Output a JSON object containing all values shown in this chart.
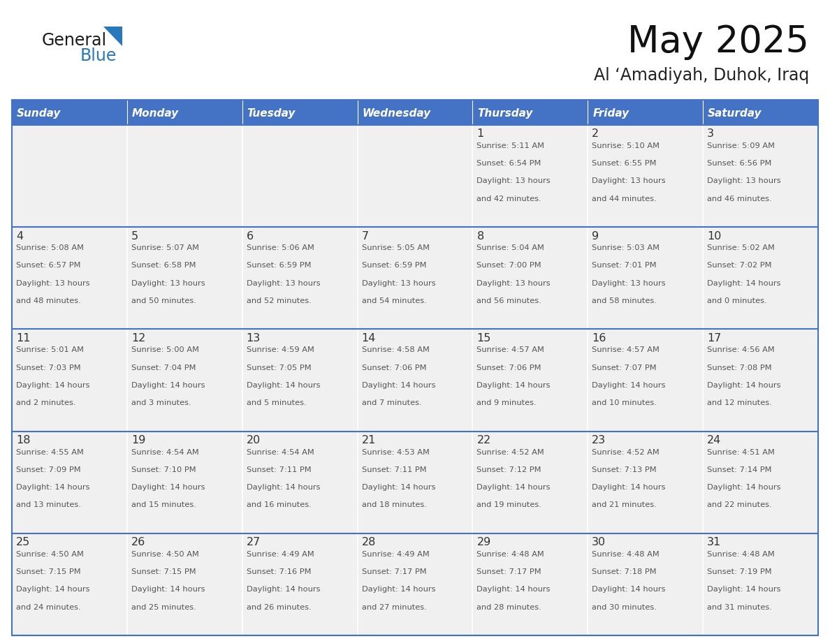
{
  "title": "May 2025",
  "subtitle": "Al ‘Amadiyah, Duhok, Iraq",
  "days_of_week": [
    "Sunday",
    "Monday",
    "Tuesday",
    "Wednesday",
    "Thursday",
    "Friday",
    "Saturday"
  ],
  "header_bg": "#4472C4",
  "header_text": "#FFFFFF",
  "cell_bg_light": "#F0F0F0",
  "border_color": "#4472C4",
  "day_num_color": "#333333",
  "text_color": "#555555",
  "logo_general_color": "#1a1a1a",
  "logo_blue_color": "#2878BE",
  "calendar_data": [
    [
      null,
      null,
      null,
      null,
      {
        "day": 1,
        "sunrise": "5:11 AM",
        "sunset": "6:54 PM",
        "daylight_hours": "13 hours",
        "daylight_mins": "and 42 minutes."
      },
      {
        "day": 2,
        "sunrise": "5:10 AM",
        "sunset": "6:55 PM",
        "daylight_hours": "13 hours",
        "daylight_mins": "and 44 minutes."
      },
      {
        "day": 3,
        "sunrise": "5:09 AM",
        "sunset": "6:56 PM",
        "daylight_hours": "13 hours",
        "daylight_mins": "and 46 minutes."
      }
    ],
    [
      {
        "day": 4,
        "sunrise": "5:08 AM",
        "sunset": "6:57 PM",
        "daylight_hours": "13 hours",
        "daylight_mins": "and 48 minutes."
      },
      {
        "day": 5,
        "sunrise": "5:07 AM",
        "sunset": "6:58 PM",
        "daylight_hours": "13 hours",
        "daylight_mins": "and 50 minutes."
      },
      {
        "day": 6,
        "sunrise": "5:06 AM",
        "sunset": "6:59 PM",
        "daylight_hours": "13 hours",
        "daylight_mins": "and 52 minutes."
      },
      {
        "day": 7,
        "sunrise": "5:05 AM",
        "sunset": "6:59 PM",
        "daylight_hours": "13 hours",
        "daylight_mins": "and 54 minutes."
      },
      {
        "day": 8,
        "sunrise": "5:04 AM",
        "sunset": "7:00 PM",
        "daylight_hours": "13 hours",
        "daylight_mins": "and 56 minutes."
      },
      {
        "day": 9,
        "sunrise": "5:03 AM",
        "sunset": "7:01 PM",
        "daylight_hours": "13 hours",
        "daylight_mins": "and 58 minutes."
      },
      {
        "day": 10,
        "sunrise": "5:02 AM",
        "sunset": "7:02 PM",
        "daylight_hours": "14 hours",
        "daylight_mins": "and 0 minutes."
      }
    ],
    [
      {
        "day": 11,
        "sunrise": "5:01 AM",
        "sunset": "7:03 PM",
        "daylight_hours": "14 hours",
        "daylight_mins": "and 2 minutes."
      },
      {
        "day": 12,
        "sunrise": "5:00 AM",
        "sunset": "7:04 PM",
        "daylight_hours": "14 hours",
        "daylight_mins": "and 3 minutes."
      },
      {
        "day": 13,
        "sunrise": "4:59 AM",
        "sunset": "7:05 PM",
        "daylight_hours": "14 hours",
        "daylight_mins": "and 5 minutes."
      },
      {
        "day": 14,
        "sunrise": "4:58 AM",
        "sunset": "7:06 PM",
        "daylight_hours": "14 hours",
        "daylight_mins": "and 7 minutes."
      },
      {
        "day": 15,
        "sunrise": "4:57 AM",
        "sunset": "7:06 PM",
        "daylight_hours": "14 hours",
        "daylight_mins": "and 9 minutes."
      },
      {
        "day": 16,
        "sunrise": "4:57 AM",
        "sunset": "7:07 PM",
        "daylight_hours": "14 hours",
        "daylight_mins": "and 10 minutes."
      },
      {
        "day": 17,
        "sunrise": "4:56 AM",
        "sunset": "7:08 PM",
        "daylight_hours": "14 hours",
        "daylight_mins": "and 12 minutes."
      }
    ],
    [
      {
        "day": 18,
        "sunrise": "4:55 AM",
        "sunset": "7:09 PM",
        "daylight_hours": "14 hours",
        "daylight_mins": "and 13 minutes."
      },
      {
        "day": 19,
        "sunrise": "4:54 AM",
        "sunset": "7:10 PM",
        "daylight_hours": "14 hours",
        "daylight_mins": "and 15 minutes."
      },
      {
        "day": 20,
        "sunrise": "4:54 AM",
        "sunset": "7:11 PM",
        "daylight_hours": "14 hours",
        "daylight_mins": "and 16 minutes."
      },
      {
        "day": 21,
        "sunrise": "4:53 AM",
        "sunset": "7:11 PM",
        "daylight_hours": "14 hours",
        "daylight_mins": "and 18 minutes."
      },
      {
        "day": 22,
        "sunrise": "4:52 AM",
        "sunset": "7:12 PM",
        "daylight_hours": "14 hours",
        "daylight_mins": "and 19 minutes."
      },
      {
        "day": 23,
        "sunrise": "4:52 AM",
        "sunset": "7:13 PM",
        "daylight_hours": "14 hours",
        "daylight_mins": "and 21 minutes."
      },
      {
        "day": 24,
        "sunrise": "4:51 AM",
        "sunset": "7:14 PM",
        "daylight_hours": "14 hours",
        "daylight_mins": "and 22 minutes."
      }
    ],
    [
      {
        "day": 25,
        "sunrise": "4:50 AM",
        "sunset": "7:15 PM",
        "daylight_hours": "14 hours",
        "daylight_mins": "and 24 minutes."
      },
      {
        "day": 26,
        "sunrise": "4:50 AM",
        "sunset": "7:15 PM",
        "daylight_hours": "14 hours",
        "daylight_mins": "and 25 minutes."
      },
      {
        "day": 27,
        "sunrise": "4:49 AM",
        "sunset": "7:16 PM",
        "daylight_hours": "14 hours",
        "daylight_mins": "and 26 minutes."
      },
      {
        "day": 28,
        "sunrise": "4:49 AM",
        "sunset": "7:17 PM",
        "daylight_hours": "14 hours",
        "daylight_mins": "and 27 minutes."
      },
      {
        "day": 29,
        "sunrise": "4:48 AM",
        "sunset": "7:17 PM",
        "daylight_hours": "14 hours",
        "daylight_mins": "and 28 minutes."
      },
      {
        "day": 30,
        "sunrise": "4:48 AM",
        "sunset": "7:18 PM",
        "daylight_hours": "14 hours",
        "daylight_mins": "and 30 minutes."
      },
      {
        "day": 31,
        "sunrise": "4:48 AM",
        "sunset": "7:19 PM",
        "daylight_hours": "14 hours",
        "daylight_mins": "and 31 minutes."
      }
    ]
  ]
}
